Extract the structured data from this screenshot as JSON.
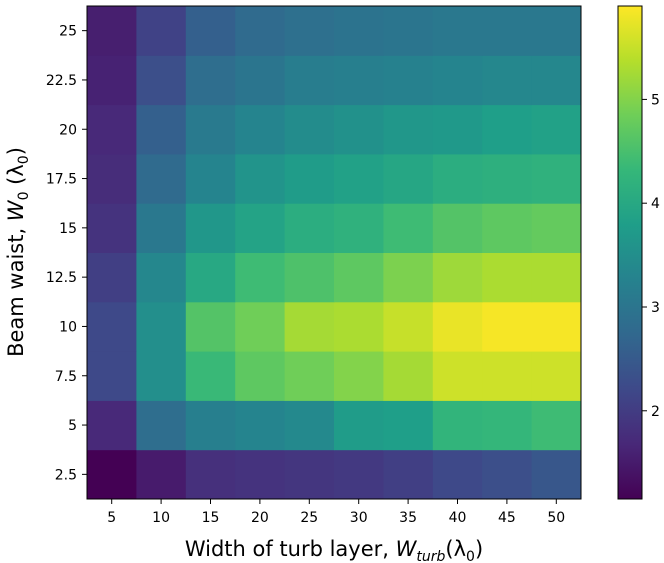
{
  "chart_data": {
    "type": "heatmap",
    "xlabel": "Width of turb layer, ",
    "xlabel_symbol": "W",
    "xlabel_sub": "turb",
    "xlabel_suffix": "(λ",
    "xlabel_suffix_sub": "0",
    "xlabel_end": ")",
    "ylabel": "Beam waist, ",
    "ylabel_symbol": "W",
    "ylabel_sub": "0",
    "ylabel_suffix": " (λ",
    "ylabel_suffix_sub": "0",
    "ylabel_end": ")",
    "x": [
      5,
      10,
      15,
      20,
      25,
      30,
      35,
      40,
      45,
      50
    ],
    "x_tick_labels": [
      "5",
      "10",
      "15",
      "20",
      "25",
      "30",
      "35",
      "40",
      "45",
      "50"
    ],
    "y": [
      2.5,
      5,
      7.5,
      10,
      12.5,
      15,
      17.5,
      20,
      22.5,
      25
    ],
    "y_tick_labels": [
      "2.5",
      "5",
      "7.5",
      "10",
      "12.5",
      "15",
      "17.5",
      "20",
      "22.5",
      "25"
    ],
    "values": [
      [
        1.15,
        1.5,
        1.8,
        1.85,
        1.9,
        1.95,
        2.05,
        2.2,
        2.3,
        2.45
      ],
      [
        1.7,
        2.85,
        3.2,
        3.3,
        3.4,
        3.75,
        3.8,
        4.25,
        4.3,
        4.4
      ],
      [
        2.2,
        3.5,
        4.35,
        4.7,
        4.85,
        5.0,
        5.25,
        5.55,
        5.55,
        5.55
      ],
      [
        2.2,
        3.5,
        4.6,
        4.85,
        5.25,
        5.3,
        5.5,
        5.75,
        5.85,
        5.85
      ],
      [
        2.05,
        3.35,
        4.0,
        4.4,
        4.55,
        4.7,
        4.95,
        5.2,
        5.3,
        5.3
      ],
      [
        1.85,
        3.05,
        3.65,
        3.9,
        4.1,
        4.2,
        4.4,
        4.6,
        4.7,
        4.75
      ],
      [
        1.75,
        2.8,
        3.3,
        3.6,
        3.75,
        3.85,
        3.95,
        4.1,
        4.15,
        4.2
      ],
      [
        1.7,
        2.6,
        3.1,
        3.3,
        3.45,
        3.55,
        3.65,
        3.7,
        3.8,
        3.85
      ],
      [
        1.6,
        2.3,
        2.85,
        3.0,
        3.15,
        3.2,
        3.25,
        3.3,
        3.35,
        3.35
      ],
      [
        1.55,
        2.1,
        2.6,
        2.8,
        2.9,
        2.95,
        3.0,
        3.05,
        3.05,
        3.05
      ]
    ],
    "colorbar": {
      "range": [
        1.15,
        5.9
      ],
      "ticks": [
        2,
        3,
        4,
        5
      ],
      "tick_labels": [
        "2",
        "3",
        "4",
        "5"
      ],
      "colormap": "viridis"
    }
  }
}
